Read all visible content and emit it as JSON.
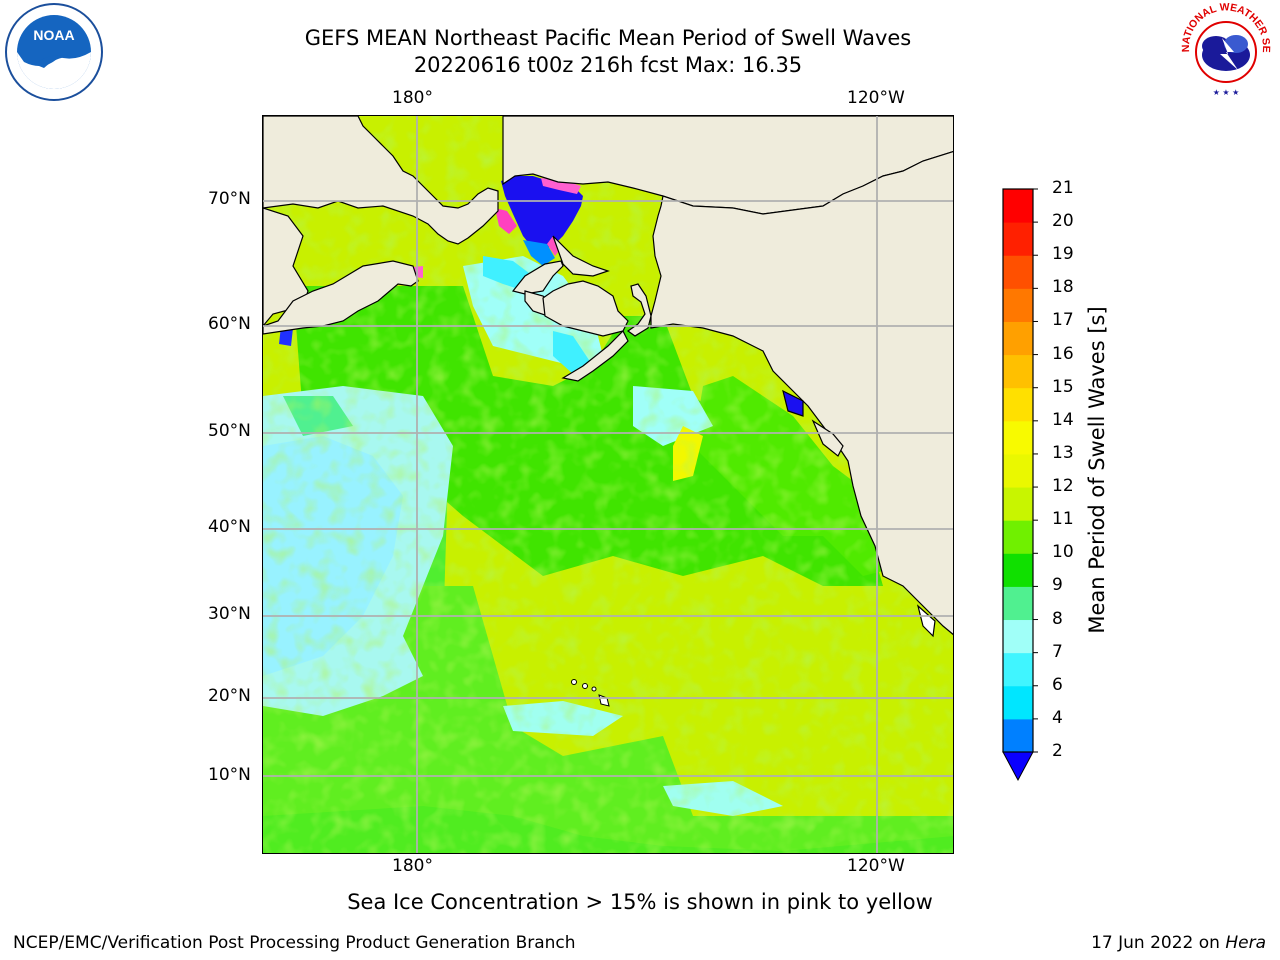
{
  "title": {
    "line1": "GEFS MEAN Northeast Pacific Mean Period of Swell Waves",
    "line2": "20220616 t00z 216h fcst   Max: 16.35"
  },
  "map": {
    "lon_labels": [
      "180°",
      "120°W"
    ],
    "lat_labels": [
      "70°N",
      "60°N",
      "50°N",
      "40°N",
      "30°N",
      "20°N",
      "10°N"
    ],
    "land_color": "#efecdc",
    "grid_color": "#b0b0b0"
  },
  "colorbar": {
    "label": "Mean Period of Swell Waves [s]",
    "ticks": [
      "2",
      "4",
      "6",
      "7",
      "8",
      "9",
      "10",
      "11",
      "12",
      "13",
      "14",
      "15",
      "16",
      "17",
      "18",
      "19",
      "20",
      "21"
    ],
    "colors": [
      "#0a00ff",
      "#0080ff",
      "#00e6ff",
      "#40f5ff",
      "#a0fff8",
      "#50f090",
      "#10e000",
      "#70f000",
      "#c8f500",
      "#eaf800",
      "#f8fa00",
      "#ffe000",
      "#ffc000",
      "#ffa000",
      "#ff7800",
      "#ff5000",
      "#ff2000",
      "#ff0000"
    ],
    "extend": "min"
  },
  "footnote": "Sea Ice Concentration > 15% is shown in pink to yellow",
  "credit": "NCEP/EMC/Verification Post Processing Product Generation Branch",
  "date": "17 Jun 2022 on",
  "host": "Hera",
  "logos": {
    "noaa_text": "NOAA",
    "nws_text": "NATIONAL WEATHER SERVICE"
  }
}
